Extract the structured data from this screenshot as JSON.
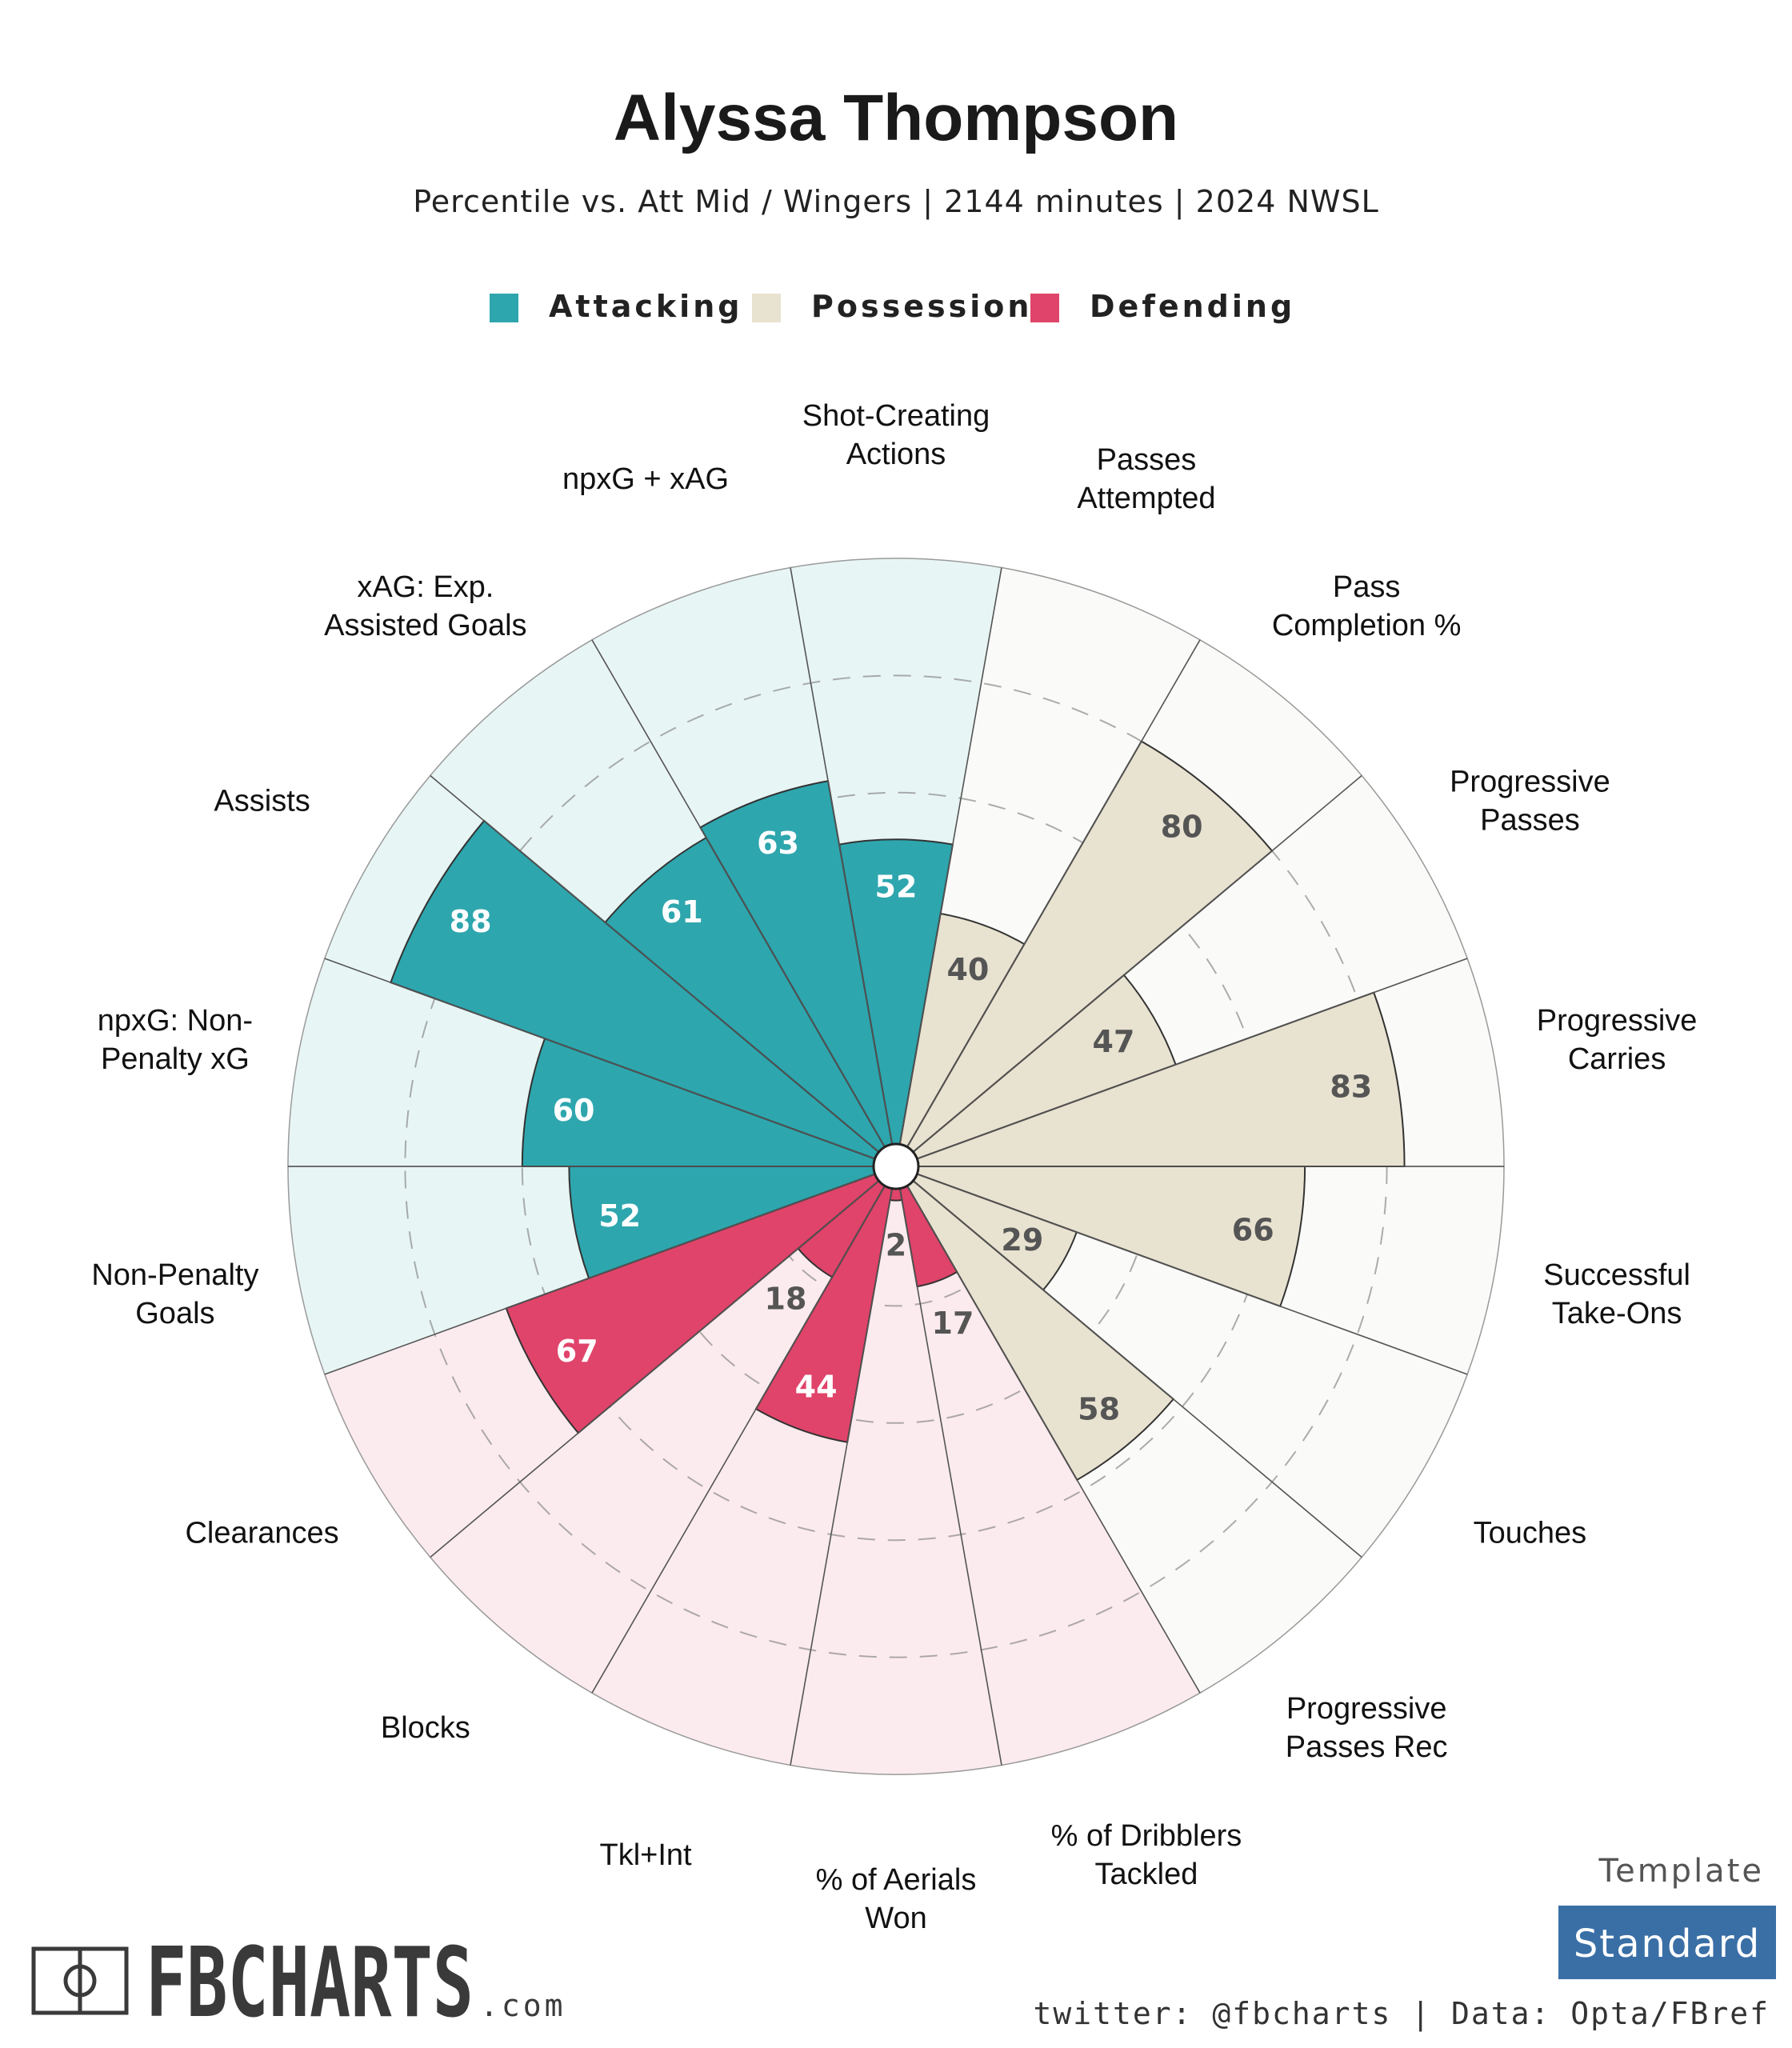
{
  "chart_data": {
    "type": "polar-bar",
    "title": "Alyssa Thompson",
    "subtitle": "Percentile vs. Att Mid / Wingers | 2144 minutes | 2024 NWSL",
    "rlim": [
      0,
      100
    ],
    "legend": [
      {
        "name": "Attacking",
        "color": "#2ea6ae"
      },
      {
        "name": "Possession",
        "color": "#e8e2d0"
      },
      {
        "name": "Defending",
        "color": "#e0446a"
      }
    ],
    "categories": [
      {
        "label": [
          "Shot-Creating",
          "Actions"
        ],
        "value": 52,
        "group": "Attacking"
      },
      {
        "label": [
          "Passes",
          "Attempted"
        ],
        "value": 40,
        "group": "Possession"
      },
      {
        "label": [
          "Pass",
          "Completion %"
        ],
        "value": 80,
        "group": "Possession"
      },
      {
        "label": [
          "Progressive",
          "Passes"
        ],
        "value": 47,
        "group": "Possession"
      },
      {
        "label": [
          "Progressive",
          "Carries"
        ],
        "value": 83,
        "group": "Possession"
      },
      {
        "label": [
          "Successful",
          "Take-Ons"
        ],
        "value": 66,
        "group": "Possession"
      },
      {
        "label": [
          "Touches"
        ],
        "value": 29,
        "group": "Possession"
      },
      {
        "label": [
          "Progressive",
          "Passes Rec"
        ],
        "value": 58,
        "group": "Possession"
      },
      {
        "label": [
          "% of Dribblers",
          "Tackled"
        ],
        "value": 17,
        "group": "Defending"
      },
      {
        "label": [
          "% of Aerials",
          "Won"
        ],
        "value": 2,
        "group": "Defending"
      },
      {
        "label": [
          "Tkl+Int"
        ],
        "value": 44,
        "group": "Defending"
      },
      {
        "label": [
          "Blocks"
        ],
        "value": 18,
        "group": "Defending"
      },
      {
        "label": [
          "Clearances"
        ],
        "value": 67,
        "group": "Defending"
      },
      {
        "label": [
          "Non-Penalty",
          "Goals"
        ],
        "value": 52,
        "group": "Attacking"
      },
      {
        "label": [
          "npxG: Non-",
          "Penalty xG"
        ],
        "value": 60,
        "group": "Attacking"
      },
      {
        "label": [
          "Assists"
        ],
        "value": 88,
        "group": "Attacking"
      },
      {
        "label": [
          "xAG: Exp.",
          "Assisted Goals"
        ],
        "value": 61,
        "group": "Attacking"
      },
      {
        "label": [
          "npxG + xAG"
        ],
        "value": 63,
        "group": "Attacking"
      }
    ]
  },
  "styles": {
    "background_colors": {
      "Attacking": "#e8f5f5",
      "Possession": "#fafaf8",
      "Defending": "#fcebee"
    },
    "value_text_colors": {
      "Attacking": "#ffffff",
      "Possession": "#555555",
      "Defending": "#ffffff",
      "Defending_low": "#555555"
    }
  },
  "footer": {
    "template_label": "Template",
    "template_value": "Standard",
    "credit": "twitter: @fbcharts | Data: Opta/FBref",
    "brand": "FBCHARTS",
    "brand_suffix": ".com",
    "badge_color": "#3a6fa6"
  }
}
